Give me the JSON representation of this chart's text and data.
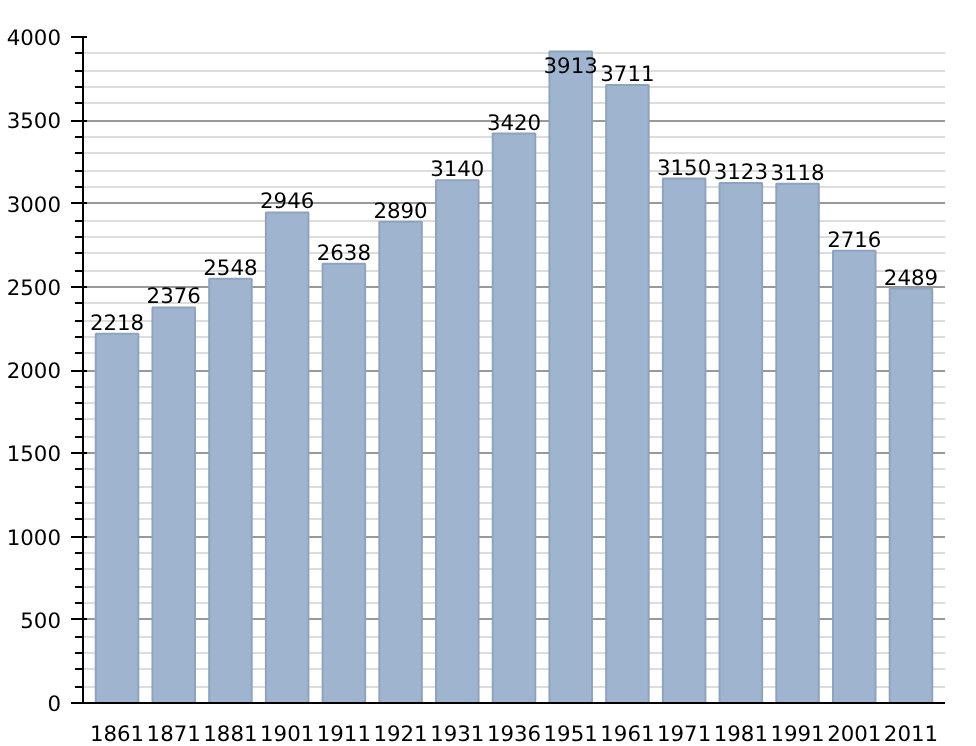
{
  "chart_data": {
    "type": "bar",
    "categories": [
      "1861",
      "1871",
      "1881",
      "1901",
      "1911",
      "1921",
      "1931",
      "1936",
      "1951",
      "1961",
      "1971",
      "1981",
      "1991",
      "2001",
      "2011"
    ],
    "values": [
      2218,
      2376,
      2548,
      2946,
      2638,
      2890,
      3140,
      3420,
      3913,
      3711,
      3150,
      3123,
      3118,
      2716,
      2489
    ],
    "color": "#9fb5cf",
    "ylim": [
      0,
      4000
    ],
    "yticks": [
      0,
      500,
      1000,
      1500,
      2000,
      2500,
      3000,
      3500,
      4000
    ],
    "grid": "y",
    "data_labels": true
  }
}
